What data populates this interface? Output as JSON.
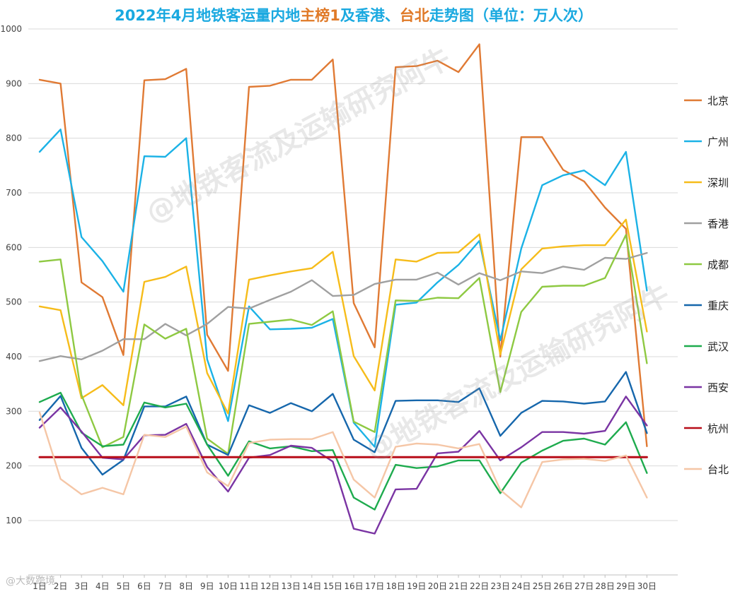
{
  "title": {
    "part1": "2022年4月地铁客运量内地",
    "part2": "主榜1",
    "part3": "及香港、",
    "part4": "台北",
    "part5": "走势图（单位：万人次）"
  },
  "watermarks": {
    "main": "@地铁客流及运输研究阿牛",
    "bottom": "@大数跨境"
  },
  "chart_data": {
    "type": "line",
    "title": "2022年4月地铁客运量内地主榜1及香港、台北走势图（单位：万人次）",
    "xlabel": "",
    "ylabel": "",
    "ylim": [
      0,
      1000
    ],
    "yticks": [
      100,
      200,
      300,
      400,
      500,
      600,
      700,
      800,
      900,
      1000
    ],
    "grid": true,
    "legend_position": "right",
    "categories": [
      "1日",
      "2日",
      "3日",
      "4日",
      "5日",
      "6日",
      "7日",
      "8日",
      "9日",
      "10日",
      "11日",
      "12日",
      "13日",
      "14日",
      "15日",
      "16日",
      "17日",
      "18日",
      "19日",
      "20日",
      "21日",
      "22日",
      "23日",
      "24日",
      "25日",
      "26日",
      "27日",
      "28日",
      "29日",
      "30日"
    ],
    "series": [
      {
        "name": "北京",
        "color": "#e07a34",
        "values": [
          907,
          900,
          536,
          509,
          403,
          906,
          908,
          927,
          440,
          374,
          894,
          896,
          907,
          907,
          944,
          498,
          417,
          930,
          932,
          942,
          921,
          972,
          400,
          802,
          802,
          742,
          721,
          673,
          634,
          236
        ]
      },
      {
        "name": "广州",
        "color": "#1bb2e6",
        "values": [
          775,
          816,
          619,
          575,
          519,
          767,
          766,
          800,
          395,
          282,
          492,
          450,
          451,
          453,
          469,
          279,
          235,
          495,
          499,
          536,
          568,
          612,
          430,
          598,
          714,
          732,
          741,
          714,
          775,
          521
        ]
      },
      {
        "name": "深圳",
        "color": "#f6bc1a",
        "values": [
          492,
          485,
          324,
          348,
          311,
          537,
          546,
          565,
          370,
          296,
          541,
          549,
          556,
          562,
          592,
          401,
          338,
          578,
          574,
          590,
          591,
          624,
          404,
          560,
          598,
          602,
          604,
          604,
          651,
          446
        ]
      },
      {
        "name": "香港",
        "color": "#a0a0a0",
        "values": [
          392,
          401,
          395,
          411,
          432,
          432,
          460,
          439,
          460,
          491,
          488,
          504,
          519,
          540,
          511,
          513,
          533,
          541,
          541,
          554,
          532,
          553,
          540,
          556,
          553,
          565,
          559,
          581,
          579,
          590
        ]
      },
      {
        "name": "成都",
        "color": "#8ec942",
        "values": [
          574,
          578,
          330,
          234,
          253,
          459,
          433,
          451,
          250,
          222,
          460,
          464,
          468,
          458,
          483,
          281,
          262,
          503,
          502,
          508,
          507,
          544,
          335,
          482,
          528,
          530,
          530,
          544,
          623,
          388
        ]
      },
      {
        "name": "重庆",
        "color": "#1667ac",
        "values": [
          284,
          328,
          233,
          184,
          211,
          309,
          309,
          327,
          239,
          220,
          311,
          297,
          315,
          300,
          332,
          248,
          225,
          319,
          320,
          320,
          317,
          342,
          255,
          297,
          319,
          318,
          314,
          318,
          372,
          260
        ]
      },
      {
        "name": "武汉",
        "color": "#1eab4e",
        "values": [
          317,
          334,
          261,
          236,
          239,
          316,
          307,
          314,
          239,
          182,
          245,
          232,
          236,
          227,
          229,
          142,
          120,
          202,
          196,
          199,
          210,
          210,
          150,
          206,
          228,
          246,
          250,
          239,
          280,
          187
        ]
      },
      {
        "name": "西安",
        "color": "#7a34a3",
        "values": [
          270,
          307,
          263,
          215,
          212,
          256,
          257,
          277,
          198,
          153,
          215,
          220,
          237,
          233,
          208,
          85,
          76,
          157,
          158,
          223,
          226,
          264,
          210,
          234,
          262,
          262,
          259,
          264,
          327,
          274
        ]
      },
      {
        "name": "杭州",
        "color": "#b80d18",
        "values": [
          216,
          216,
          216,
          216,
          216,
          216,
          216,
          216,
          216,
          216,
          216,
          216,
          216,
          216,
          216,
          216,
          216,
          216,
          216,
          216,
          216,
          216,
          216,
          216,
          216,
          216,
          216,
          216,
          216,
          216
        ]
      },
      {
        "name": "台北",
        "color": "#f5c6a6",
        "values": [
          298,
          176,
          148,
          160,
          148,
          257,
          253,
          272,
          188,
          163,
          242,
          248,
          249,
          249,
          262,
          175,
          142,
          235,
          241,
          239,
          232,
          240,
          156,
          124,
          207,
          212,
          213,
          209,
          219,
          142
        ]
      }
    ]
  }
}
